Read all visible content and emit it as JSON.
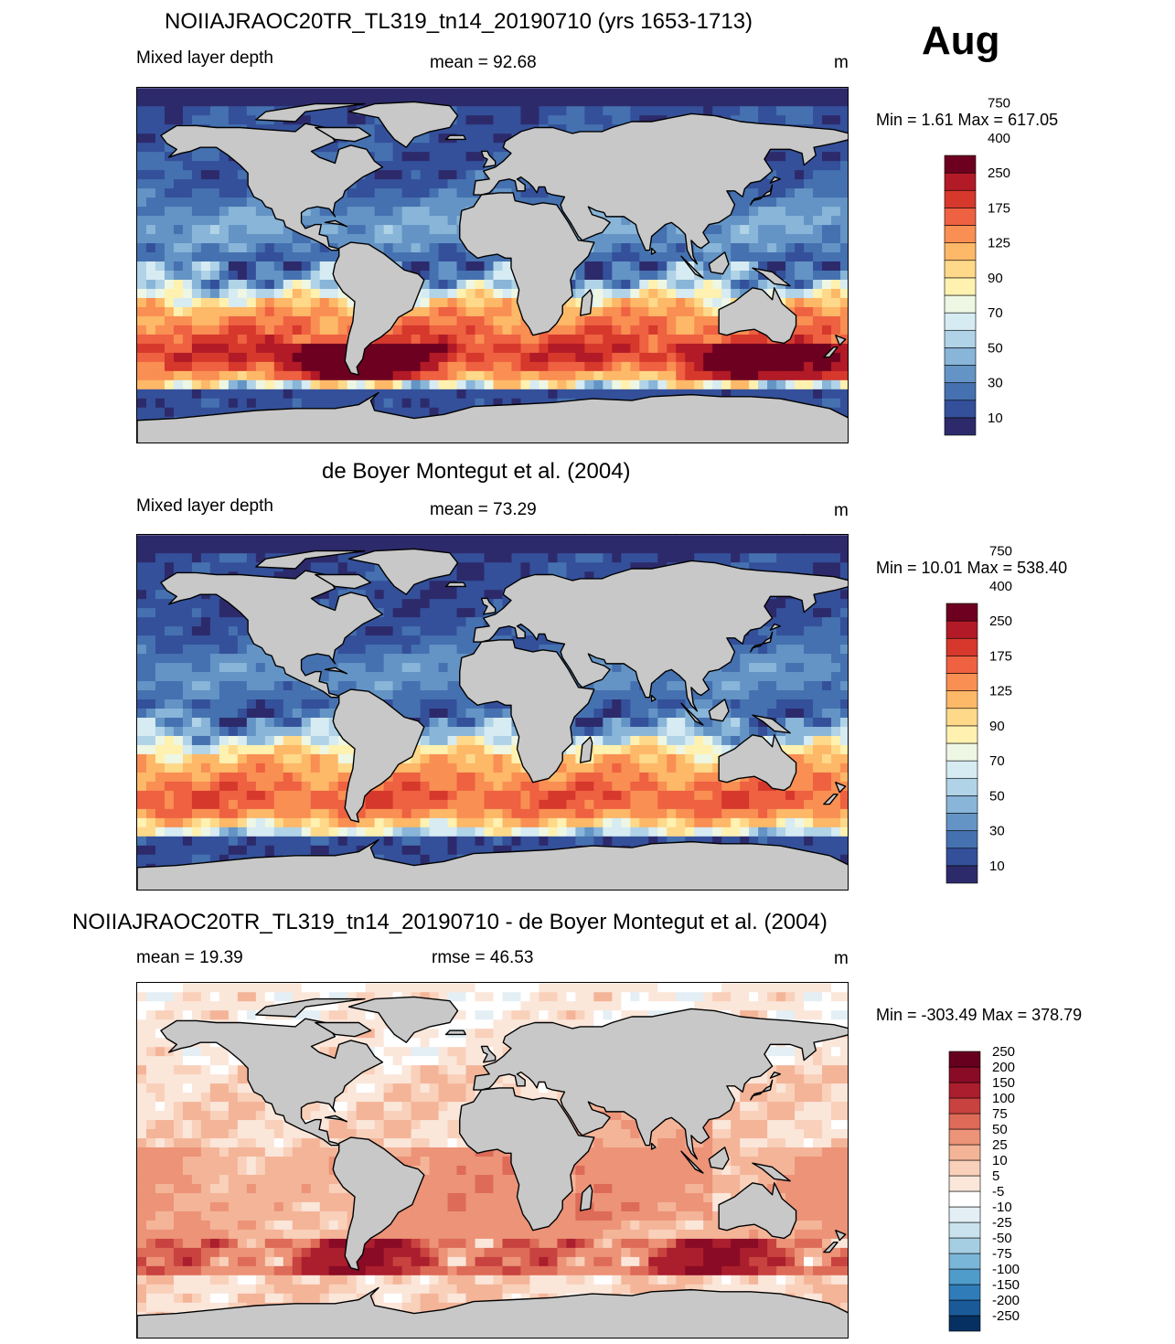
{
  "month": "Aug",
  "panels": [
    {
      "title": "NOIIAJRAOC20TR_TL319_tn14_20190710 (yrs 1653-1713)",
      "left_label": "Mixed layer depth",
      "center_label": "mean =  92.68",
      "units": "m",
      "minmax": "Min =   1.61 Max = 617.05",
      "field": "model"
    },
    {
      "title": "de Boyer Montegut et al. (2004)",
      "left_label": "Mixed layer depth",
      "center_label": "mean =  73.29",
      "units": "m",
      "minmax": "Min =  10.01 Max = 538.40",
      "field": "obs"
    },
    {
      "title": "NOIIAJRAOC20TR_TL319_tn14_20190710 - de Boyer Montegut et al. (2004)",
      "left_label": "mean =  19.39",
      "center_label": "rmse =  46.53",
      "units": "m",
      "minmax": "Min = -303.49 Max = 378.79",
      "field": "diff"
    }
  ],
  "colorbars": {
    "depth": {
      "colors": [
        "#2d2a6b",
        "#34509a",
        "#4571b0",
        "#6494c5",
        "#88b5d8",
        "#b0d3e7",
        "#d6ebf2",
        "#eef7e4",
        "#fff1b0",
        "#fed98a",
        "#fdb868",
        "#f98f52",
        "#ee6141",
        "#d6382c",
        "#b11a26",
        "#6d0020"
      ],
      "labels": [
        "10",
        "30",
        "50",
        "70",
        "90",
        "125",
        "175",
        "250",
        "400",
        "750"
      ]
    },
    "diff": {
      "colors": [
        "#053061",
        "#1a5a98",
        "#2f7cb9",
        "#4f9bca",
        "#7ab6d8",
        "#a6cee3",
        "#c9e2ee",
        "#e4eff5",
        "#ffffff",
        "#fbe6da",
        "#f9d0ba",
        "#f4b498",
        "#ec9378",
        "#dd6b57",
        "#c8423f",
        "#ab1e2d",
        "#8a0b25",
        "#67001f"
      ],
      "labels": [
        "-250",
        "-200",
        "-150",
        "-100",
        "-75",
        "-50",
        "-25",
        "-10",
        "-5",
        "5",
        "10",
        "25",
        "50",
        "75",
        "100",
        "150",
        "200",
        "250"
      ]
    }
  }
}
